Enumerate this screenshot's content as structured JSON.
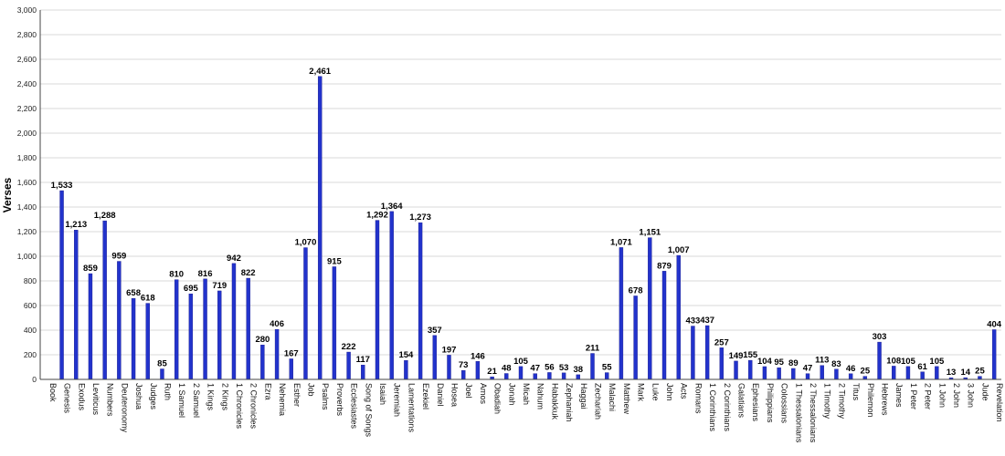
{
  "chart_data": {
    "type": "bar",
    "ylabel": "Verses",
    "ylim": [
      0,
      3000
    ],
    "yticks": [
      0,
      200,
      400,
      600,
      800,
      1000,
      1200,
      1400,
      1600,
      1800,
      2000,
      2200,
      2400,
      2600,
      2800,
      3000
    ],
    "ytick_labels": [
      "0",
      "200",
      "400",
      "600",
      "800",
      "1,000",
      "1,200",
      "1,400",
      "1,600",
      "1,800",
      "2,000",
      "2,200",
      "2,400",
      "2,600",
      "2,800",
      "3,000"
    ],
    "grid": true,
    "bar_color": "#2233cc",
    "categories": [
      "Book",
      "Genesis",
      "Exodus",
      "Leviticus",
      "Numbers",
      "Deuteronomy",
      "Joshua",
      "Judges",
      "Ruth",
      "1 Samuel",
      "2 Samuel",
      "1 Kings",
      "2 Kings",
      "1 Chronicles",
      "2 Chronicles",
      "Ezra",
      "Nehemia",
      "Esther",
      "Job",
      "Psalms",
      "Proverbs",
      "Ecclesiastes",
      "Song of Songs",
      "Isaiah",
      "Jeremiah",
      "Lamentations",
      "Ezekiel",
      "Daniel",
      "Hosea",
      "Joel",
      "Amos",
      "Obadiah",
      "Jonah",
      "Micah",
      "Nahum",
      "Habakkuk",
      "Zephaniah",
      "Haggai",
      "Zechariah",
      "Malachi",
      "Matthew",
      "Mark",
      "Luke",
      "John",
      "Acts",
      "Romans",
      "1 Corinthians",
      "2 Corinthians",
      "Galatians",
      "Ephesians",
      "Philippians",
      "Colossians",
      "1 Thessalonians",
      "2 Thessalonians",
      "1 Timothy",
      "2 Timothy",
      "Titus",
      "Philemon",
      "Hebrews",
      "James",
      "1 Peter",
      "2 Peter",
      "1 John",
      "2 John",
      "3 John",
      "Jude",
      "Revelation"
    ],
    "values": [
      null,
      1533,
      1213,
      859,
      1288,
      959,
      658,
      618,
      85,
      810,
      695,
      816,
      719,
      942,
      822,
      280,
      406,
      167,
      1070,
      2461,
      915,
      222,
      117,
      1292,
      1364,
      154,
      1273,
      357,
      197,
      73,
      146,
      21,
      48,
      105,
      47,
      56,
      53,
      38,
      211,
      55,
      1071,
      678,
      1151,
      879,
      1007,
      433,
      437,
      257,
      149,
      155,
      104,
      95,
      89,
      47,
      113,
      83,
      46,
      25,
      303,
      108,
      105,
      61,
      105,
      13,
      14,
      25,
      404
    ],
    "value_labels": [
      "",
      "1,533",
      "1,213",
      "859",
      "1,288",
      "959",
      "658",
      "618",
      "85",
      "810",
      "695",
      "816",
      "719",
      "942",
      "822",
      "280",
      "406",
      "167",
      "1,070",
      "2,461",
      "915",
      "222",
      "117",
      "1,292",
      "1,364",
      "154",
      "1,273",
      "357",
      "197",
      "73",
      "146",
      "21",
      "48",
      "105",
      "47",
      "56",
      "53",
      "38",
      "211",
      "55",
      "1,071",
      "678",
      "1,151",
      "879",
      "1,007",
      "433",
      "437",
      "257",
      "149",
      "155",
      "104",
      "95",
      "89",
      "47",
      "113",
      "83",
      "46",
      "25",
      "303",
      "108",
      "105",
      "61",
      "105",
      "13",
      "14",
      "25",
      "404"
    ]
  }
}
